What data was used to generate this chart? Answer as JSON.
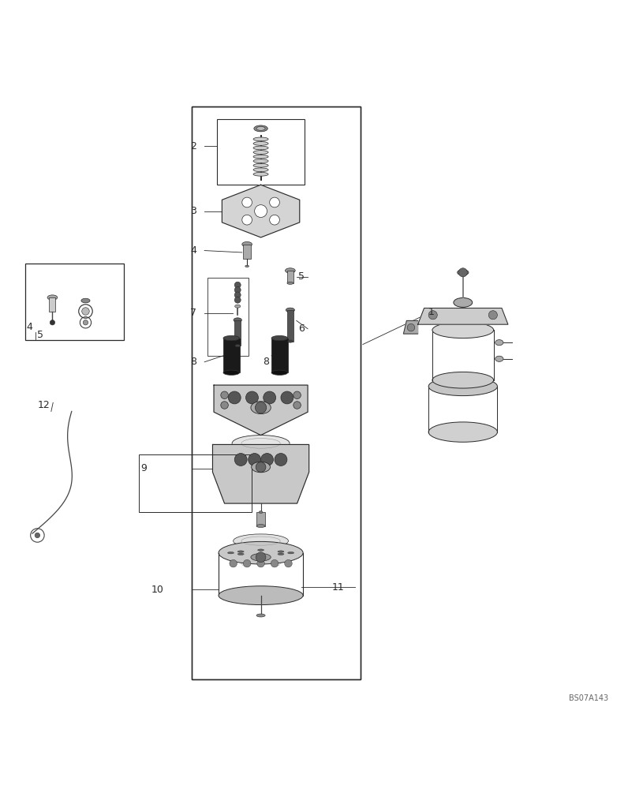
{
  "bg_color": "#ffffff",
  "line_color": "#2a2a2a",
  "fig_width": 7.96,
  "fig_height": 10.0,
  "watermark": "BS07A143"
}
